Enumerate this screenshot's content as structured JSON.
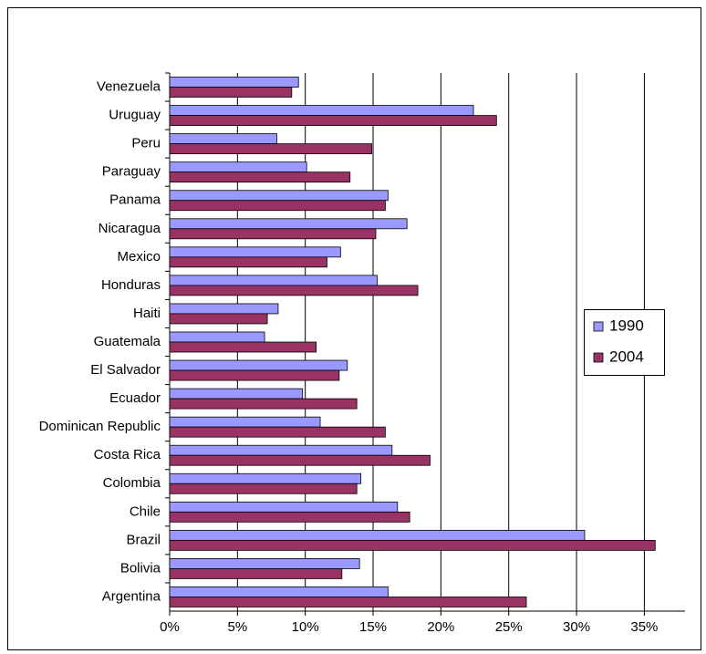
{
  "chart_data": {
    "type": "hbar",
    "categories": [
      "Venezuela",
      "Uruguay",
      "Peru",
      "Paraguay",
      "Panama",
      "Nicaragua",
      "Mexico",
      "Honduras",
      "Haiti",
      "Guatemala",
      "El Salvador",
      "Ecuador",
      "Dominican Republic",
      "Costa Rica",
      "Colombia",
      "Chile",
      "Brazil",
      "Bolivia",
      "Argentina"
    ],
    "series": [
      {
        "name": "1990",
        "color": "#9999ff",
        "values": [
          9.5,
          22.4,
          7.9,
          10.1,
          16.1,
          17.5,
          12.6,
          15.3,
          8.0,
          7.0,
          13.1,
          9.8,
          11.1,
          16.4,
          14.1,
          16.8,
          30.6,
          14.0,
          16.1
        ]
      },
      {
        "name": "2004",
        "color": "#993366",
        "values": [
          9.0,
          24.1,
          14.9,
          13.3,
          15.9,
          15.2,
          11.6,
          18.3,
          7.2,
          10.8,
          12.5,
          13.8,
          15.9,
          19.2,
          13.8,
          17.7,
          35.8,
          12.7,
          26.3
        ]
      }
    ],
    "xlim": [
      0,
      38
    ],
    "xticks": [
      {
        "value": 0,
        "label": "0%"
      },
      {
        "value": 5,
        "label": "5%"
      },
      {
        "value": 10,
        "label": "10%"
      },
      {
        "value": 15,
        "label": "15%"
      },
      {
        "value": 20,
        "label": "20%"
      },
      {
        "value": 25,
        "label": "25%"
      },
      {
        "value": 30,
        "label": "30%"
      },
      {
        "value": 35,
        "label": "35%"
      }
    ],
    "grid": true,
    "legend": "right"
  }
}
